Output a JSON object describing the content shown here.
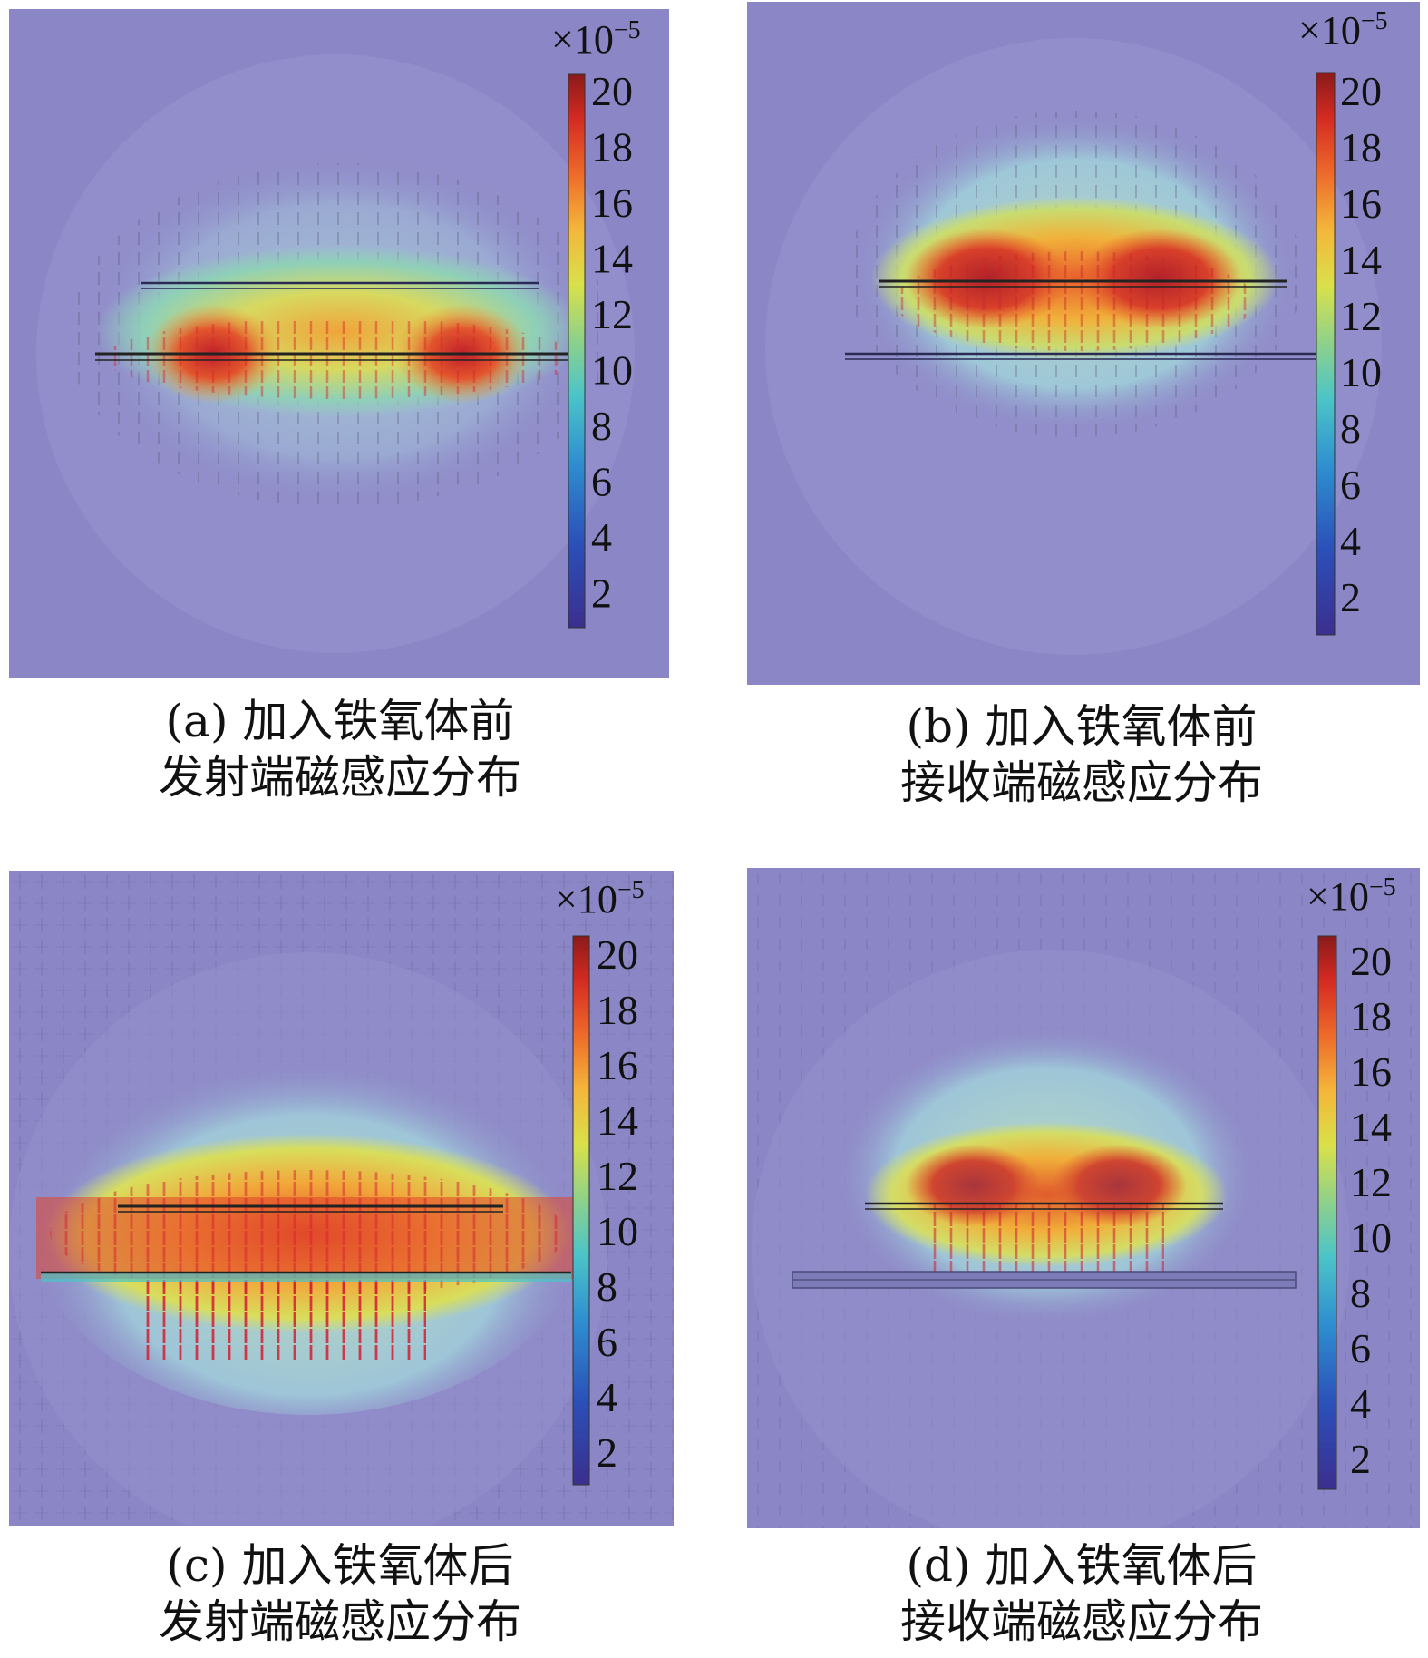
{
  "figure": {
    "colorbar": {
      "exponent_prefix": "×10",
      "exponent": "−5",
      "ticks": [
        "20",
        "18",
        "16",
        "14",
        "12",
        "10",
        "8",
        "6",
        "4",
        "2"
      ],
      "range": [
        0,
        21
      ],
      "colormap": [
        "#3b2f8f",
        "#2b4fb8",
        "#2f8fd0",
        "#4cc4c8",
        "#8fd18a",
        "#d9e14a",
        "#f4b63a",
        "#ee6a2a",
        "#d42a22",
        "#8a1a1a"
      ]
    },
    "background_color": "#8b86c6",
    "panels": [
      {
        "id": "a",
        "caption_line1": "(a) 加入铁氧体前",
        "caption_line2": "发射端磁感应分布"
      },
      {
        "id": "b",
        "caption_line1": "(b) 加入铁氧体前",
        "caption_line2": "接收端磁感应分布"
      },
      {
        "id": "c",
        "caption_line1": "(c) 加入铁氧体后",
        "caption_line2": "发射端磁感应分布"
      },
      {
        "id": "d",
        "caption_line1": "(d) 加入铁氧体后",
        "caption_line2": "接收端磁感应分布"
      }
    ]
  }
}
